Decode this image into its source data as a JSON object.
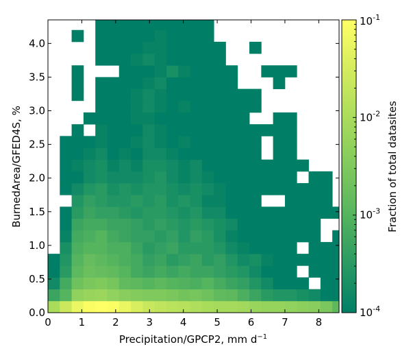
{
  "chart_data": {
    "type": "heatmap",
    "xlabel": "Precipitation/GPCP2,  mm d",
    "xlabel_sup": "−1",
    "ylabel": "BurnedArea/GFED4S,  %",
    "colorbar_label": "Fraction of total datasites",
    "xlim": [
      0,
      8.6
    ],
    "ylim": [
      0,
      4.35
    ],
    "x_ticks": [
      "0",
      "1",
      "2",
      "3",
      "4",
      "5",
      "6",
      "7",
      "8"
    ],
    "y_ticks": [
      "0.0",
      "0.5",
      "1.0",
      "1.5",
      "2.0",
      "2.5",
      "3.0",
      "3.5",
      "4.0"
    ],
    "colorbar_scale": "log",
    "colorbar_range": [
      0.0001,
      0.1
    ],
    "colorbar_ticks": [
      {
        "base": "10",
        "exp": "-4"
      },
      {
        "base": "10",
        "exp": "-3"
      },
      {
        "base": "10",
        "exp": "-2"
      },
      {
        "base": "10",
        "exp": "-1"
      }
    ],
    "colormap": [
      "#007f66",
      "#2a9a63",
      "#55b45e",
      "#80c95d",
      "#aadc5c",
      "#d5ec5e",
      "#ffff66"
    ],
    "x_bin_edges": [
      0,
      0.35,
      0.7,
      1.05,
      1.4,
      1.75,
      2.1,
      2.45,
      2.8,
      3.15,
      3.5,
      3.85,
      4.2,
      4.55,
      4.9,
      5.25,
      5.6,
      5.95,
      6.3,
      6.65,
      7.0,
      7.35,
      7.7,
      8.05,
      8.4,
      8.6
    ],
    "y_bin_edges": [
      0,
      0.175,
      0.35,
      0.525,
      0.7,
      0.875,
      1.05,
      1.225,
      1.4,
      1.575,
      1.75,
      1.925,
      2.1,
      2.275,
      2.45,
      2.625,
      2.8,
      2.975,
      3.15,
      3.325,
      3.5,
      3.675,
      3.85,
      4.025,
      4.2,
      4.35
    ],
    "values_log10_rows_bottom_to_top": [
      [
        -2.0,
        -1.6,
        -1.25,
        -1.05,
        -1.0,
        -1.05,
        -1.25,
        -1.45,
        -1.65,
        -1.75,
        -1.8,
        -1.85,
        -1.95,
        -2.0,
        -2.05,
        -2.05,
        -2.1,
        -2.2,
        -2.25,
        -2.25,
        -2.3,
        -2.35,
        -2.4,
        -2.55,
        -2.9
      ],
      [
        -3.3,
        -3.0,
        -2.3,
        -2.2,
        -2.15,
        -2.3,
        -2.4,
        -2.45,
        -2.5,
        -2.5,
        -2.55,
        -2.65,
        -2.6,
        -2.7,
        -2.85,
        -2.9,
        -3.1,
        -3.3,
        -3.5,
        -3.6,
        -3.6,
        -3.7,
        -3.8,
        -4.0,
        -4.0
      ],
      [
        -3.8,
        -3.2,
        -2.7,
        -2.55,
        -2.5,
        -2.6,
        -2.85,
        -2.9,
        -3.0,
        -2.9,
        -3.0,
        -3.05,
        -3.1,
        -3.0,
        -3.15,
        -3.3,
        -3.4,
        -3.6,
        -3.8,
        -4.0,
        -4.0,
        -4.0,
        null,
        -4.0,
        -4.0
      ],
      [
        -4.0,
        -3.5,
        -2.9,
        -2.75,
        -2.8,
        -2.85,
        -3.0,
        -3.2,
        -3.3,
        -3.2,
        -3.3,
        -3.2,
        -3.3,
        -3.3,
        -3.4,
        -3.5,
        -3.6,
        -3.8,
        -4.0,
        -4.0,
        -4.0,
        null,
        -4.0,
        -4.0,
        -4.0
      ],
      [
        -4.0,
        -3.6,
        -3.0,
        -2.8,
        -2.9,
        -3.0,
        -3.1,
        -3.2,
        -3.4,
        -3.3,
        -3.5,
        -3.4,
        -3.3,
        -3.5,
        -3.4,
        -3.6,
        -3.8,
        -3.7,
        -3.9,
        -4.0,
        -4.0,
        -4.0,
        -4.0,
        -4.0,
        -4.0
      ],
      [
        null,
        -3.7,
        -3.1,
        -3.0,
        -3.0,
        -3.1,
        -3.1,
        -3.3,
        -3.5,
        -3.4,
        -3.3,
        -3.5,
        -3.5,
        -3.5,
        -3.6,
        -3.8,
        -3.9,
        -4.0,
        -4.0,
        -4.0,
        -4.0,
        null,
        -4.0,
        -4.0,
        -4.0
      ],
      [
        null,
        -3.9,
        -3.2,
        -3.1,
        -3.0,
        -3.2,
        -3.3,
        -3.4,
        -3.4,
        -3.5,
        -3.4,
        -3.6,
        -3.4,
        -3.5,
        -3.7,
        -3.9,
        -4.0,
        -4.0,
        -4.0,
        -4.0,
        -4.0,
        -4.0,
        -4.0,
        null,
        -4.0
      ],
      [
        null,
        -4.0,
        -3.3,
        -3.2,
        -3.2,
        -3.3,
        -3.3,
        -3.4,
        -3.5,
        -3.4,
        -3.5,
        -3.6,
        -3.5,
        -3.6,
        -3.7,
        -3.8,
        -4.0,
        -4.0,
        -4.0,
        -4.0,
        -4.0,
        -4.0,
        -4.0,
        null,
        null
      ],
      [
        null,
        -4.0,
        -3.5,
        -3.3,
        -3.4,
        -3.4,
        -3.5,
        -3.6,
        -3.5,
        -3.5,
        -3.6,
        -3.7,
        -3.6,
        -3.8,
        -3.8,
        -4.0,
        -4.0,
        -4.0,
        -4.0,
        -4.0,
        -4.0,
        -4.0,
        -4.0,
        -4.0,
        -4.0
      ],
      [
        null,
        null,
        -3.6,
        -3.4,
        -3.5,
        -3.6,
        -3.6,
        -3.5,
        -3.6,
        -3.5,
        -3.7,
        -3.6,
        -3.7,
        -3.9,
        -3.9,
        -4.0,
        -4.0,
        -4.0,
        null,
        null,
        -4.0,
        -4.0,
        -4.0,
        -4.0,
        null
      ],
      [
        null,
        -4.0,
        -3.8,
        -3.6,
        -3.5,
        -3.7,
        -3.6,
        -3.7,
        -3.6,
        -3.6,
        -3.7,
        -3.8,
        -3.7,
        -3.8,
        -3.9,
        -4.0,
        -4.0,
        -4.0,
        -4.0,
        -4.0,
        -4.0,
        -4.0,
        -4.0,
        -4.0,
        null
      ],
      [
        null,
        -4.0,
        -4.0,
        -3.8,
        -3.7,
        -3.8,
        -3.8,
        -3.8,
        -3.7,
        -3.6,
        -3.8,
        -3.9,
        -3.8,
        -3.9,
        -4.0,
        -4.0,
        -4.0,
        -4.0,
        -4.0,
        -4.0,
        -4.0,
        null,
        -4.0,
        -4.0,
        null
      ],
      [
        null,
        -4.0,
        -3.9,
        -3.8,
        -3.7,
        -3.9,
        -3.8,
        -3.9,
        -3.7,
        -3.7,
        -3.8,
        -3.9,
        -3.8,
        -4.0,
        -4.0,
        -4.0,
        -4.0,
        -4.0,
        -4.0,
        -4.0,
        -4.0,
        -4.0,
        null,
        null,
        null
      ],
      [
        null,
        -4.0,
        -4.0,
        -3.9,
        -3.8,
        -4.0,
        -3.9,
        -4.0,
        -3.8,
        -3.8,
        -3.9,
        -4.0,
        -4.0,
        -4.0,
        -4.0,
        -4.0,
        -4.0,
        -4.0,
        null,
        -4.0,
        -4.0,
        null,
        null,
        null,
        null
      ],
      [
        null,
        -4.0,
        -4.0,
        -4.0,
        -3.9,
        -4.0,
        -4.0,
        -3.9,
        -3.8,
        -3.9,
        -4.0,
        -3.9,
        -4.0,
        -4.0,
        -4.0,
        -4.0,
        -4.0,
        -4.0,
        null,
        -4.0,
        -4.0,
        null,
        null,
        null,
        null
      ],
      [
        null,
        null,
        -4.0,
        null,
        -3.9,
        -4.0,
        -4.0,
        -4.0,
        -3.8,
        -3.9,
        -4.0,
        -4.0,
        -4.0,
        -4.0,
        -4.0,
        -4.0,
        -4.0,
        -4.0,
        -4.0,
        -4.0,
        -4.0,
        null,
        null,
        null,
        null
      ],
      [
        null,
        null,
        null,
        -4.0,
        -4.0,
        -4.0,
        -4.0,
        -3.9,
        -3.9,
        -4.0,
        -4.0,
        -4.0,
        -4.0,
        -4.0,
        -4.0,
        -4.0,
        -4.0,
        null,
        null,
        -4.0,
        -4.0,
        null,
        null,
        null,
        null
      ],
      [
        null,
        null,
        null,
        null,
        -4.0,
        -4.0,
        -4.0,
        -3.9,
        -3.8,
        -3.9,
        -4.0,
        -3.9,
        -4.0,
        -4.0,
        -4.0,
        -4.0,
        -4.0,
        -4.0,
        null,
        null,
        null,
        null,
        null,
        null,
        null
      ],
      [
        null,
        null,
        -4.0,
        null,
        -4.0,
        -4.0,
        -4.0,
        -3.9,
        -3.8,
        -3.9,
        -4.0,
        -4.0,
        -4.0,
        -4.0,
        -4.0,
        -4.0,
        -4.0,
        -4.0,
        null,
        null,
        null,
        null,
        null,
        null,
        null
      ],
      [
        null,
        null,
        -4.0,
        null,
        -4.0,
        -4.0,
        -4.0,
        -4.0,
        -3.9,
        -3.8,
        -4.0,
        -4.0,
        -4.0,
        -4.0,
        -4.0,
        -4.0,
        null,
        null,
        null,
        -4.0,
        null,
        null,
        null,
        null,
        null
      ],
      [
        null,
        null,
        -4.0,
        null,
        null,
        null,
        -4.0,
        -4.0,
        -4.0,
        -3.9,
        -3.7,
        -3.9,
        -4.0,
        -4.0,
        -4.0,
        -4.0,
        null,
        null,
        -4.0,
        -4.0,
        -4.0,
        null,
        null,
        null,
        null
      ],
      [
        null,
        null,
        null,
        null,
        -4.0,
        -4.0,
        -4.0,
        -3.9,
        -3.8,
        -3.9,
        -4.0,
        -4.0,
        -4.0,
        -4.0,
        -4.0,
        null,
        null,
        null,
        null,
        null,
        null,
        null,
        null,
        null,
        null
      ],
      [
        null,
        null,
        null,
        null,
        -4.0,
        -4.0,
        -4.0,
        -4.0,
        -3.9,
        -3.9,
        -4.0,
        -4.0,
        -4.0,
        -4.0,
        -4.0,
        null,
        null,
        -4.0,
        null,
        null,
        null,
        null,
        null,
        null,
        null
      ],
      [
        null,
        null,
        -4.0,
        null,
        -4.0,
        -4.0,
        -4.0,
        -4.0,
        -4.0,
        -3.9,
        -4.0,
        -4.0,
        -4.0,
        -4.0,
        null,
        null,
        null,
        null,
        null,
        null,
        null,
        null,
        null,
        null,
        null
      ],
      [
        null,
        null,
        null,
        null,
        -4.0,
        -4.0,
        -4.0,
        -4.0,
        -4.0,
        -4.0,
        -4.0,
        -4.0,
        -4.0,
        -4.0,
        null,
        null,
        null,
        null,
        null,
        null,
        null,
        null,
        null,
        null,
        null
      ]
    ]
  }
}
